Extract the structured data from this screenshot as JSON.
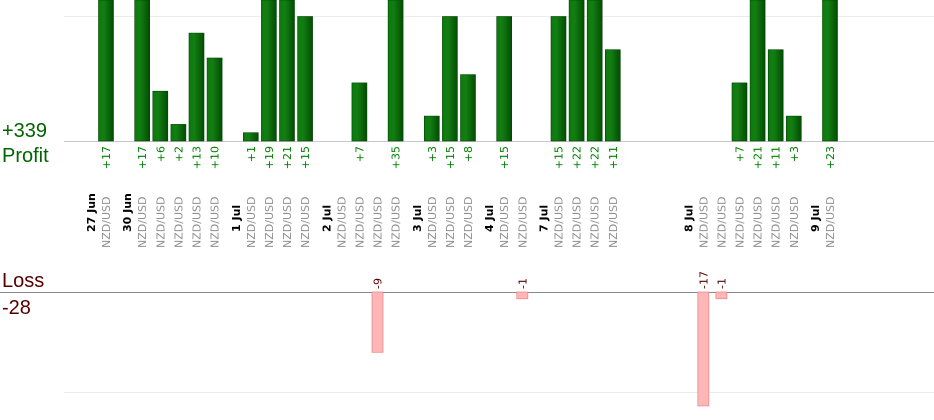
{
  "chart_data": {
    "type": "bar",
    "profit": {
      "total_label": "+339",
      "axis_label": "Profit",
      "color": "#006400",
      "label_color": "#008000"
    },
    "loss": {
      "total_label": "-28",
      "axis_label": "Loss",
      "color": "#ffb6b6",
      "label_color": "#550000"
    },
    "bar_label_default": "NZD/USD",
    "scale": {
      "profit_gridline": 15,
      "loss_gridline": -15
    },
    "slots": [
      {
        "date": "27 Jun",
        "label": "NZD/USD",
        "value": 17
      },
      {
        "label": "",
        "value": null
      },
      {
        "date": "30 Jun",
        "label": "NZD/USD",
        "value": 17
      },
      {
        "label": "NZD/USD",
        "value": 6
      },
      {
        "label": "NZD/USD",
        "value": 2
      },
      {
        "label": "NZD/USD",
        "value": 13
      },
      {
        "label": "NZD/USD",
        "value": 10
      },
      {
        "label": "",
        "value": null
      },
      {
        "date": "1 Jul",
        "label": "NZD/USD",
        "value": 1
      },
      {
        "label": "NZD/USD",
        "value": 19
      },
      {
        "label": "NZD/USD",
        "value": 21
      },
      {
        "label": "NZD/USD",
        "value": 15
      },
      {
        "label": "",
        "value": null
      },
      {
        "date": "2 Jul",
        "label": "NZD/USD",
        "value": null
      },
      {
        "label": "NZD/USD",
        "value": 7
      },
      {
        "label": "NZD/USD",
        "value": -9
      },
      {
        "label": "NZD/USD",
        "value": 35
      },
      {
        "label": "",
        "value": null
      },
      {
        "date": "3 Jul",
        "label": "NZD/USD",
        "value": 3
      },
      {
        "label": "NZD/USD",
        "value": 15
      },
      {
        "label": "NZD/USD",
        "value": 8
      },
      {
        "label": "",
        "value": null
      },
      {
        "date": "4 Jul",
        "label": "NZD/USD",
        "value": 15
      },
      {
        "label": "NZD/USD",
        "value": -1
      },
      {
        "label": "",
        "value": null
      },
      {
        "date": "7 Jul",
        "label": "NZD/USD",
        "value": 15
      },
      {
        "label": "NZD/USD",
        "value": 22
      },
      {
        "label": "NZD/USD",
        "value": 22
      },
      {
        "label": "NZD/USD",
        "value": 11
      },
      {
        "label": "",
        "value": null
      },
      {
        "label": "",
        "value": null
      },
      {
        "label": "",
        "value": null
      },
      {
        "label": "",
        "value": null
      },
      {
        "date": "8 Jul",
        "label": "NZD/USD",
        "value": -17
      },
      {
        "label": "NZD/USD",
        "value": -1
      },
      {
        "label": "NZD/USD",
        "value": 7
      },
      {
        "label": "NZD/USD",
        "value": 21
      },
      {
        "label": "NZD/USD",
        "value": 11
      },
      {
        "label": "NZD/USD",
        "value": 3
      },
      {
        "label": "",
        "value": null
      },
      {
        "date": "9 Jul",
        "label": "NZD/USD",
        "value": 23
      }
    ]
  }
}
